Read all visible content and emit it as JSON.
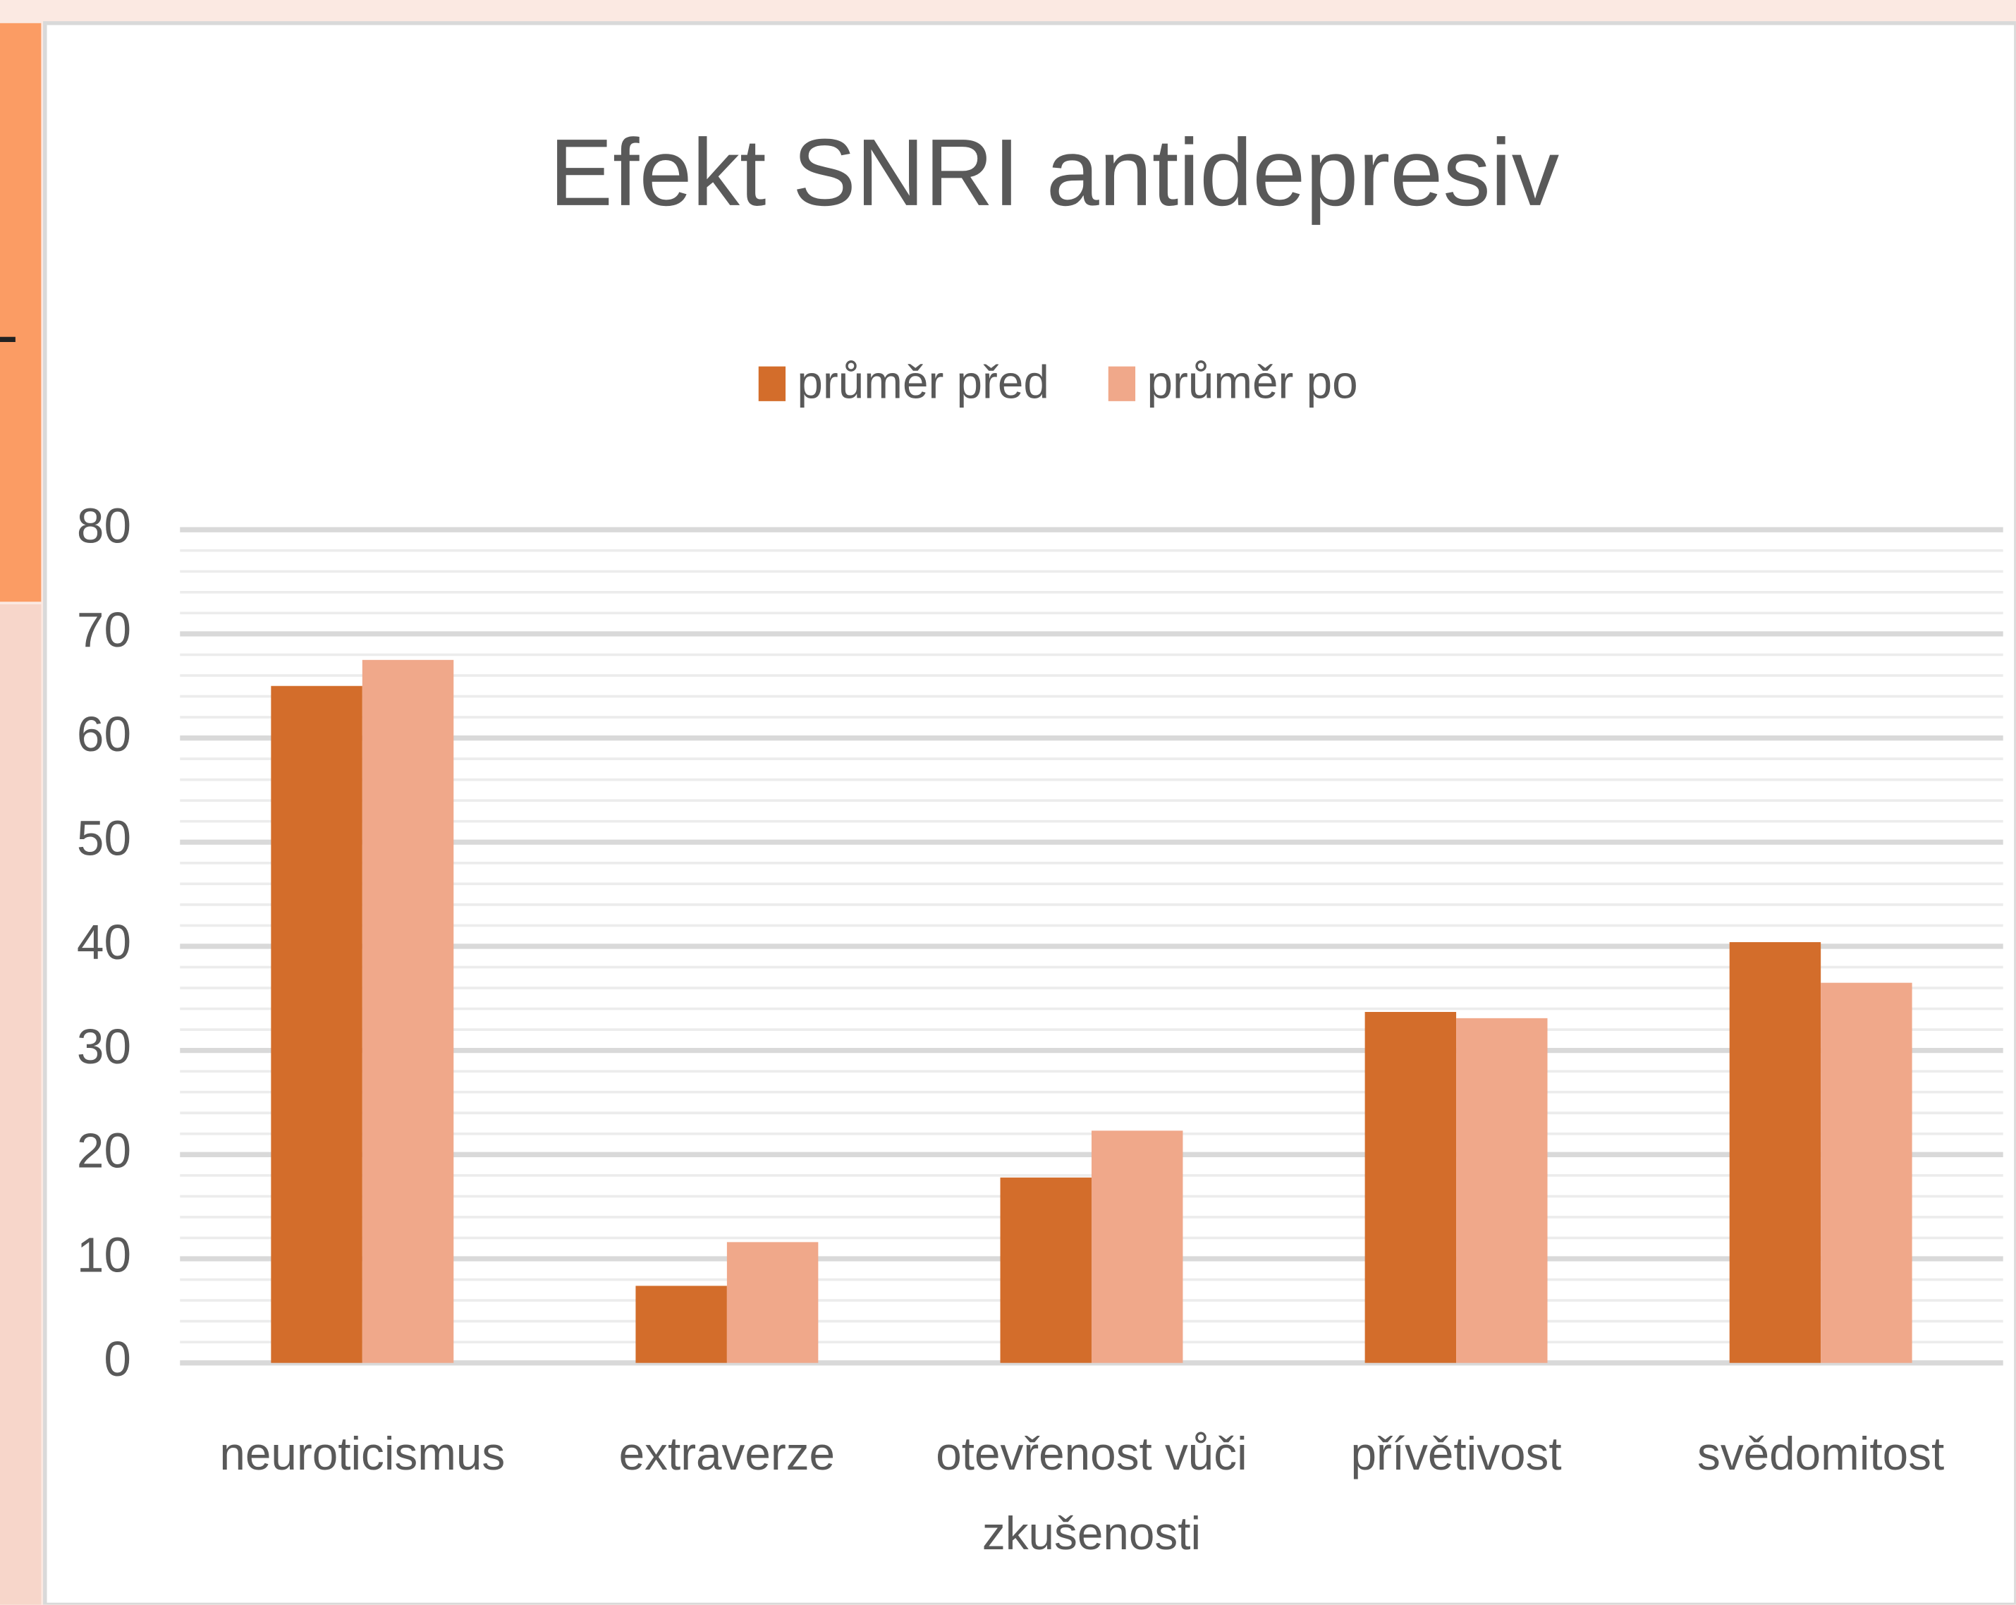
{
  "chart_data": {
    "type": "bar",
    "title": "Efekt SNRI antidepresiv",
    "categories": [
      "neuroticismus",
      "extraverze",
      "otevřenost vůči zkušenosti",
      "přívětivost",
      "svědomitost"
    ],
    "series": [
      {
        "name": "průměr před",
        "color": "#d36d2b",
        "values": [
          65,
          7.4,
          17.8,
          33.7,
          40.4
        ]
      },
      {
        "name": "průměr po",
        "color": "#f0a88a",
        "values": [
          67.5,
          11.6,
          22.3,
          33.1,
          36.5
        ]
      }
    ],
    "ylim": [
      0,
      80
    ],
    "yticks": [
      0,
      10,
      20,
      30,
      40,
      50,
      60,
      70,
      80
    ],
    "grid": true,
    "legend": "top"
  }
}
